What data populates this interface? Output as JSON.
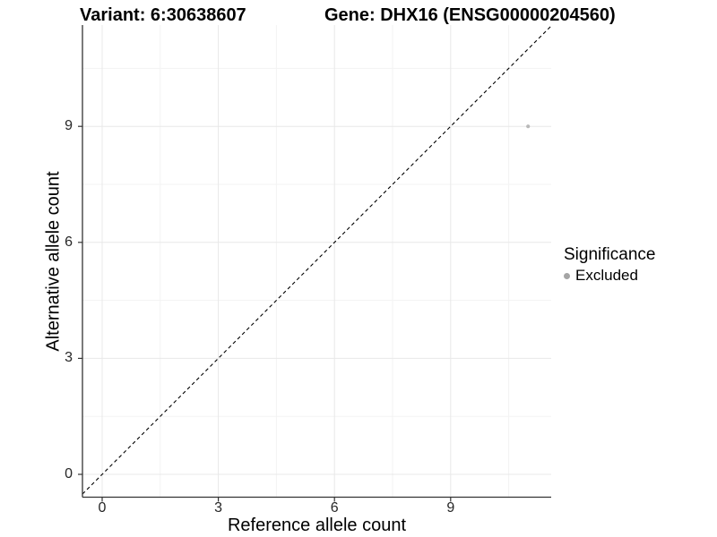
{
  "title": {
    "variant": "Variant: 6:30638607",
    "gene": "Gene: DHX16 (ENSG00000204560)"
  },
  "axes": {
    "x_label": "Reference allele count",
    "y_label": "Alternative allele count"
  },
  "legend": {
    "title": "Significance",
    "items": [
      {
        "label": "Excluded",
        "color": "#a5a5a5"
      }
    ]
  },
  "chart_data": {
    "type": "scatter",
    "title": "Variant: 6:30638607   Gene: DHX16 (ENSG00000204560)",
    "xlabel": "Reference allele count",
    "ylabel": "Alternative allele count",
    "x_ticks": [
      0,
      3,
      6,
      9
    ],
    "y_ticks": [
      0,
      3,
      6,
      9
    ],
    "xlim": [
      -0.51,
      11.6
    ],
    "ylim": [
      -0.59,
      11.62
    ],
    "grid": "major+minor",
    "legend_position": "right",
    "reference_line": {
      "type": "identity y=x",
      "style": "dashed",
      "color": "#000000"
    },
    "series": [
      {
        "name": "Excluded",
        "color": "#b9b9b9",
        "points": [
          {
            "x": 11,
            "y": 9
          }
        ]
      }
    ]
  },
  "colors": {
    "background": "#ffffff",
    "axis_line": "#333333",
    "tick_text": "#262626",
    "grid_major": "#e8e8e8",
    "grid_minor": "#f3f3f3",
    "point": "#b9b9b9"
  }
}
